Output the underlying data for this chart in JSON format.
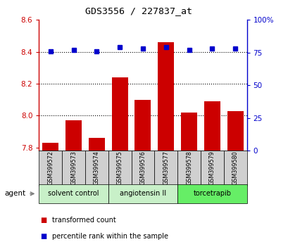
{
  "title": "GDS3556 / 227837_at",
  "samples": [
    "GSM399572",
    "GSM399573",
    "GSM399574",
    "GSM399575",
    "GSM399576",
    "GSM399577",
    "GSM399578",
    "GSM399579",
    "GSM399580"
  ],
  "red_values": [
    7.83,
    7.97,
    7.86,
    8.24,
    8.1,
    8.46,
    8.02,
    8.09,
    8.03
  ],
  "blue_values": [
    76,
    77,
    76,
    79,
    78,
    79,
    77,
    78,
    78
  ],
  "ylim_left": [
    7.78,
    8.6
  ],
  "ylim_right": [
    0,
    100
  ],
  "yticks_left": [
    7.8,
    8.0,
    8.2,
    8.4,
    8.6
  ],
  "yticks_right": [
    0,
    25,
    50,
    75,
    100
  ],
  "ytick_labels_right": [
    "0",
    "25",
    "50",
    "75",
    "100%"
  ],
  "bar_color": "#CC0000",
  "dot_color": "#0000CC",
  "bar_bottom": 7.78,
  "grid_values": [
    8.0,
    8.2,
    8.4
  ],
  "legend_red": "transformed count",
  "legend_blue": "percentile rank within the sample",
  "agent_label": "agent",
  "sample_bg_color": "#d0d0d0",
  "groups_info": [
    {
      "label": "solvent control",
      "start": 0,
      "end": 2,
      "color": "#c8f0c8"
    },
    {
      "label": "angiotensin II",
      "start": 3,
      "end": 5,
      "color": "#c8f0c8"
    },
    {
      "label": "torcetrapib",
      "start": 6,
      "end": 8,
      "color": "#66ee66"
    }
  ]
}
